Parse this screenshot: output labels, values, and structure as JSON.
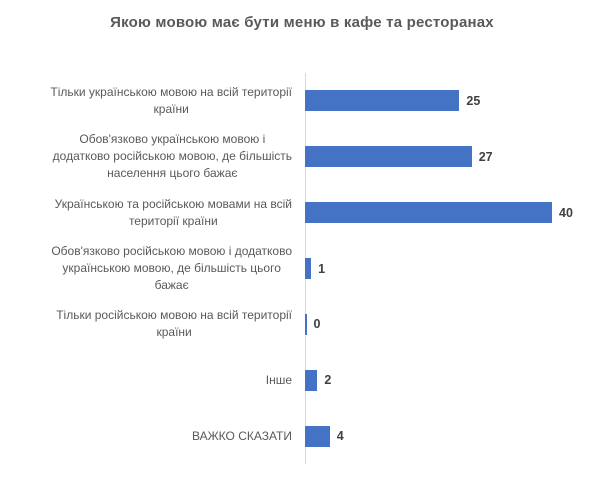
{
  "title": "Якою мовою має бути меню в кафе та ресторанах",
  "chart_data": {
    "type": "bar",
    "orientation": "horizontal",
    "title": "Якою мовою має бути меню в кафе та ресторанах",
    "categories": [
      "Тільки українською мовою на всій території країни",
      "Обов'язково українською мовою і додатково російською мовою, де більшість населення цього бажає",
      "Українською та російською мовами на всій території країни",
      "Обов'язково російською мовою і додатково українською мовою, де більшість цього бажає",
      "Тільки російською мовою на всій території країни",
      "Інше",
      "ВАЖКО СКАЗАТИ"
    ],
    "category_lines": [
      [
        "Тільки українською мовою на всій території",
        "країни"
      ],
      [
        "Обов'язково українською мовою і",
        "додатково російською мовою, де більшість",
        "населення цього бажає"
      ],
      [
        "Українською та російською мовами на всій",
        "території країни"
      ],
      [
        "Обов'язково російською мовою і додатково",
        "українською мовою, де більшість цього",
        "бажає"
      ],
      [
        "Тільки російською мовою на всій території",
        "країни"
      ],
      [
        "Інше"
      ],
      [
        "ВАЖКО СКАЗАТИ"
      ]
    ],
    "values": [
      25,
      27,
      40,
      1,
      0,
      2,
      4
    ],
    "xlim": [
      0,
      40
    ],
    "bar_color": "#4472C4",
    "axis_color": "#d9d9d9",
    "label_color": "#595959",
    "value_label_color": "#404040",
    "grid": "off",
    "legend": "none",
    "data_labels": "on"
  }
}
